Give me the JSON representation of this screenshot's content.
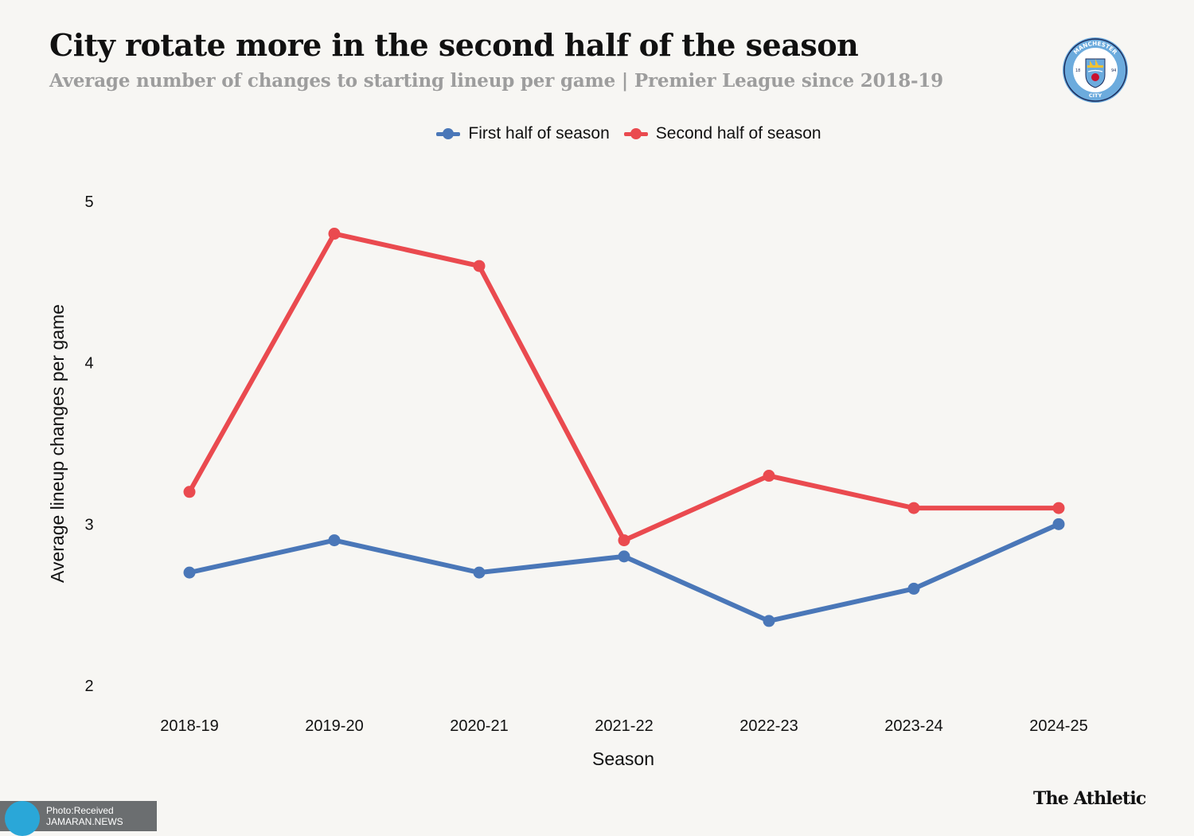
{
  "header": {
    "title": "City rotate more in the second half of the season",
    "subtitle": "Average number of changes to starting lineup per game | Premier League since 2018-19"
  },
  "crest": {
    "top_text": "MANCHESTER",
    "bottom_text": "CITY",
    "left_num": "18",
    "right_num": "94"
  },
  "legend": {
    "first_label": "First half of season",
    "second_label": "Second half of season"
  },
  "chart_data": {
    "type": "line",
    "title": "City rotate more in the second half of the season",
    "xlabel": "Season",
    "ylabel": "Average lineup changes per game",
    "categories": [
      "2018-19",
      "2019-20",
      "2020-21",
      "2021-22",
      "2022-23",
      "2023-24",
      "2024-25"
    ],
    "ylim": [
      2,
      5
    ],
    "yticks": [
      "2",
      "3",
      "4",
      "5"
    ],
    "series": [
      {
        "name": "First half of season",
        "color": "#4a77b8",
        "values": [
          2.7,
          2.9,
          2.7,
          2.8,
          2.4,
          2.6,
          3.0
        ]
      },
      {
        "name": "Second half of season",
        "color": "#ea4a4f",
        "values": [
          3.2,
          4.8,
          4.6,
          2.9,
          3.3,
          3.1,
          3.1
        ]
      }
    ],
    "grid": false,
    "legend_position": "top-center"
  },
  "footer": {
    "watermark_line1": "Photo:Received",
    "watermark_line2": "JAMARAN.NEWS",
    "brand": "The Athletic"
  },
  "colors": {
    "background": "#f7f6f3",
    "first_half": "#4a77b8",
    "second_half": "#ea4a4f",
    "crest_blue": "#6cabdd",
    "crest_navy": "#1c2c5b"
  }
}
